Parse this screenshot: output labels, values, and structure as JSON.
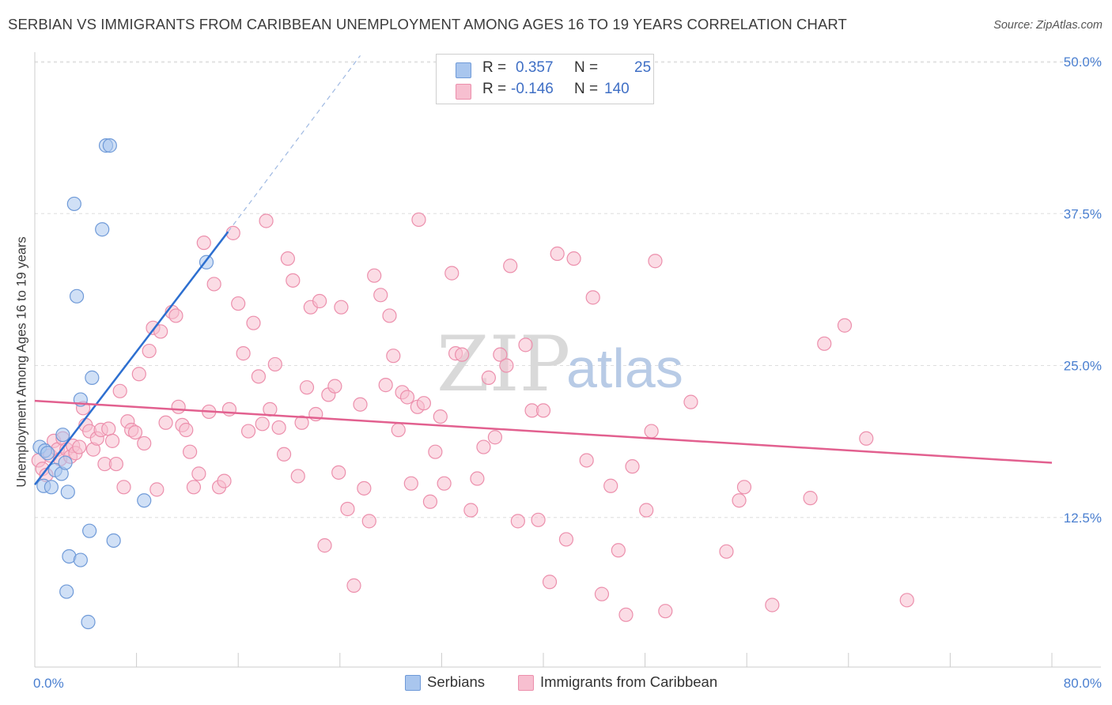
{
  "title": "SERBIAN VS IMMIGRANTS FROM CARIBBEAN UNEMPLOYMENT AMONG AGES 16 TO 19 YEARS CORRELATION CHART",
  "source": "Source: ZipAtlas.com",
  "watermark": {
    "zip": "ZIP",
    "atlas": "atlas"
  },
  "legend": {
    "r_label": "R =",
    "n_label": "N =",
    "series": [
      {
        "name": "Serbians",
        "r": "0.357",
        "n": "25",
        "color": "#a9c6ee",
        "stroke": "#6f9ad8",
        "line": "#2d6fd0"
      },
      {
        "name": "Immigrants from Caribbean",
        "r": "-0.146",
        "n": "140",
        "color": "#f7bfd0",
        "stroke": "#ec8fac",
        "line": "#e2608f"
      }
    ]
  },
  "chart_data": {
    "type": "scatter",
    "title": "SERBIAN VS IMMIGRANTS FROM CARIBBEAN UNEMPLOYMENT AMONG AGES 16 TO 19 YEARS CORRELATION CHART",
    "xlabel": "",
    "ylabel": "Unemployment Among Ages 16 to 19 years",
    "xlim": [
      0,
      80
    ],
    "ylim": [
      0,
      52
    ],
    "x_tick_labels": [
      "0.0%",
      "80.0%"
    ],
    "y_ticks": [
      12.5,
      25.0,
      37.5,
      50.0
    ],
    "y_tick_labels": [
      "12.5%",
      "25.0%",
      "37.5%",
      "50.0%"
    ],
    "series": [
      {
        "name": "Serbians",
        "points": [
          [
            0.4,
            18.3
          ],
          [
            0.8,
            18.0
          ],
          [
            1.0,
            17.8
          ],
          [
            1.6,
            16.4
          ],
          [
            2.1,
            16.1
          ],
          [
            2.4,
            17.0
          ],
          [
            2.2,
            19.3
          ],
          [
            0.7,
            15.1
          ],
          [
            1.3,
            15.0
          ],
          [
            2.6,
            14.6
          ],
          [
            3.1,
            38.3
          ],
          [
            3.3,
            30.7
          ],
          [
            3.6,
            22.2
          ],
          [
            4.5,
            24.0
          ],
          [
            4.3,
            11.4
          ],
          [
            5.3,
            36.2
          ],
          [
            5.6,
            43.1
          ],
          [
            5.9,
            43.1
          ],
          [
            6.2,
            10.6
          ],
          [
            8.6,
            13.9
          ],
          [
            13.5,
            33.5
          ],
          [
            2.7,
            9.3
          ],
          [
            3.6,
            9.0
          ],
          [
            2.5,
            6.4
          ],
          [
            4.2,
            3.9
          ]
        ],
        "trend": {
          "x": [
            0,
            15.2
          ],
          "y": [
            15.2,
            36.0
          ],
          "dashed_to": [
            25.6,
            50.5
          ]
        }
      },
      {
        "name": "Immigrants from Caribbean",
        "points": [
          [
            0.3,
            17.2
          ],
          [
            0.6,
            16.5
          ],
          [
            0.9,
            16.0
          ],
          [
            1.2,
            17.6
          ],
          [
            1.5,
            18.8
          ],
          [
            1.8,
            18.1
          ],
          [
            2.0,
            17.3
          ],
          [
            2.2,
            19.0
          ],
          [
            2.5,
            18.1
          ],
          [
            2.8,
            17.5
          ],
          [
            3.0,
            18.4
          ],
          [
            3.2,
            17.8
          ],
          [
            3.5,
            18.3
          ],
          [
            3.8,
            21.5
          ],
          [
            4.0,
            20.1
          ],
          [
            4.3,
            19.6
          ],
          [
            4.6,
            18.1
          ],
          [
            4.9,
            19.0
          ],
          [
            5.2,
            19.7
          ],
          [
            5.5,
            16.9
          ],
          [
            5.8,
            19.8
          ],
          [
            6.1,
            18.8
          ],
          [
            6.4,
            16.9
          ],
          [
            6.7,
            22.9
          ],
          [
            7.0,
            15.0
          ],
          [
            7.3,
            20.4
          ],
          [
            7.6,
            19.7
          ],
          [
            7.9,
            19.5
          ],
          [
            8.2,
            24.3
          ],
          [
            8.6,
            18.6
          ],
          [
            9.0,
            26.2
          ],
          [
            9.3,
            28.1
          ],
          [
            9.6,
            14.8
          ],
          [
            9.9,
            27.8
          ],
          [
            10.3,
            20.3
          ],
          [
            10.8,
            29.4
          ],
          [
            11.1,
            29.1
          ],
          [
            11.3,
            21.6
          ],
          [
            11.6,
            20.1
          ],
          [
            11.9,
            19.7
          ],
          [
            12.2,
            17.9
          ],
          [
            12.5,
            15.0
          ],
          [
            12.9,
            16.1
          ],
          [
            13.3,
            35.1
          ],
          [
            13.7,
            21.2
          ],
          [
            14.1,
            31.7
          ],
          [
            14.5,
            15.0
          ],
          [
            14.9,
            15.5
          ],
          [
            15.3,
            21.4
          ],
          [
            15.6,
            35.9
          ],
          [
            16.0,
            30.1
          ],
          [
            16.4,
            26.0
          ],
          [
            16.8,
            19.6
          ],
          [
            17.2,
            28.5
          ],
          [
            17.6,
            24.1
          ],
          [
            17.9,
            20.2
          ],
          [
            18.2,
            36.9
          ],
          [
            18.5,
            21.4
          ],
          [
            18.9,
            25.1
          ],
          [
            19.2,
            19.9
          ],
          [
            19.6,
            17.7
          ],
          [
            19.9,
            33.8
          ],
          [
            20.3,
            32.0
          ],
          [
            20.7,
            15.9
          ],
          [
            21.0,
            20.3
          ],
          [
            21.4,
            23.2
          ],
          [
            21.7,
            29.8
          ],
          [
            22.1,
            21.0
          ],
          [
            22.4,
            30.3
          ],
          [
            22.8,
            10.2
          ],
          [
            23.1,
            22.6
          ],
          [
            23.6,
            23.3
          ],
          [
            23.9,
            16.2
          ],
          [
            24.1,
            29.8
          ],
          [
            24.6,
            13.2
          ],
          [
            25.1,
            6.9
          ],
          [
            25.6,
            21.8
          ],
          [
            25.9,
            14.9
          ],
          [
            26.3,
            12.2
          ],
          [
            26.7,
            32.4
          ],
          [
            27.2,
            30.8
          ],
          [
            27.6,
            23.4
          ],
          [
            27.9,
            29.1
          ],
          [
            28.2,
            25.8
          ],
          [
            28.6,
            19.7
          ],
          [
            28.9,
            22.8
          ],
          [
            29.3,
            22.4
          ],
          [
            29.6,
            15.3
          ],
          [
            30.1,
            21.6
          ],
          [
            30.6,
            21.9
          ],
          [
            31.1,
            13.8
          ],
          [
            31.5,
            17.9
          ],
          [
            31.9,
            20.8
          ],
          [
            32.2,
            15.3
          ],
          [
            32.8,
            32.6
          ],
          [
            33.1,
            26.0
          ],
          [
            33.6,
            25.9
          ],
          [
            34.3,
            13.1
          ],
          [
            34.8,
            15.7
          ],
          [
            35.3,
            18.3
          ],
          [
            35.7,
            24.0
          ],
          [
            36.2,
            19.1
          ],
          [
            36.6,
            25.9
          ],
          [
            37.1,
            25.0
          ],
          [
            37.4,
            33.2
          ],
          [
            38.0,
            12.2
          ],
          [
            38.6,
            26.7
          ],
          [
            39.1,
            21.3
          ],
          [
            39.6,
            12.3
          ],
          [
            40.0,
            21.3
          ],
          [
            40.5,
            7.2
          ],
          [
            41.1,
            34.2
          ],
          [
            41.8,
            10.7
          ],
          [
            42.4,
            33.8
          ],
          [
            43.4,
            17.2
          ],
          [
            43.9,
            30.6
          ],
          [
            44.6,
            6.2
          ],
          [
            45.3,
            15.1
          ],
          [
            45.9,
            9.8
          ],
          [
            46.5,
            4.5
          ],
          [
            47.0,
            16.7
          ],
          [
            48.1,
            13.1
          ],
          [
            48.8,
            33.6
          ],
          [
            48.5,
            19.6
          ],
          [
            49.6,
            4.8
          ],
          [
            54.4,
            9.7
          ],
          [
            55.4,
            13.9
          ],
          [
            55.8,
            15.0
          ],
          [
            58.0,
            5.3
          ],
          [
            61.0,
            14.1
          ],
          [
            62.1,
            26.8
          ],
          [
            65.4,
            19.0
          ],
          [
            68.6,
            5.7
          ],
          [
            63.7,
            28.3
          ],
          [
            51.6,
            22.0
          ],
          [
            30.2,
            37.0
          ]
        ],
        "trend": {
          "x": [
            0,
            80
          ],
          "y": [
            22.1,
            17.0
          ]
        }
      }
    ]
  }
}
